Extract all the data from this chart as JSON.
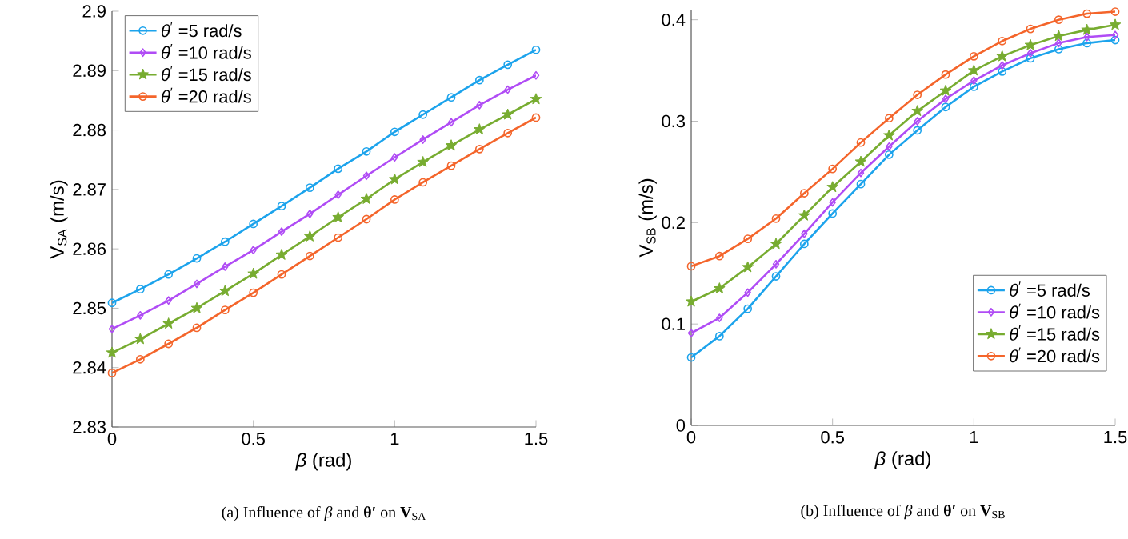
{
  "chart_data": [
    {
      "type": "line",
      "title": "(a) Influence of *β* and **θ′** on **V**$_{SA}$",
      "xlabel": "*β* (rad)",
      "ylabel": "V$_{SA}$ (m/s)",
      "x": [
        0,
        0.1,
        0.2,
        0.3,
        0.4,
        0.5,
        0.6,
        0.7,
        0.8,
        0.9,
        1.0,
        1.1,
        1.2,
        1.3,
        1.4,
        1.5
      ],
      "xlim": [
        0,
        1.5
      ],
      "xticks": [
        0,
        0.5,
        1,
        1.5
      ],
      "ylim": [
        2.83,
        2.9
      ],
      "yticks": [
        2.83,
        2.84,
        2.85,
        2.86,
        2.87,
        2.88,
        2.89,
        2.9
      ],
      "legend": "top left",
      "line_style": "solid",
      "series": [
        {
          "name": "*θ*$^{′}$ =5 rad/s",
          "color": "#1ca3ec",
          "marker": "circle",
          "values": [
            2.8509,
            2.8532,
            2.8557,
            2.8584,
            2.8612,
            2.8642,
            2.8672,
            2.8703,
            2.8735,
            2.8764,
            2.8797,
            2.8826,
            2.8855,
            2.8884,
            2.891,
            2.8935
          ]
        },
        {
          "name": "*θ*$^{′}$ =10 rad/s",
          "color": "#b04cf5",
          "marker": "diamond",
          "values": [
            2.8465,
            2.8488,
            2.8513,
            2.8541,
            2.857,
            2.8598,
            2.8629,
            2.8659,
            2.8691,
            2.8723,
            2.8754,
            2.8784,
            2.8813,
            2.8842,
            2.8868,
            2.8892
          ]
        },
        {
          "name": "*θ*$^{′}$ =15 rad/s",
          "color": "#77ac30",
          "marker": "star",
          "values": [
            2.8425,
            2.8448,
            2.8474,
            2.85,
            2.8529,
            2.8558,
            2.859,
            2.8621,
            2.8653,
            2.8684,
            2.8717,
            2.8746,
            2.8774,
            2.8801,
            2.8826,
            2.8852
          ]
        },
        {
          "name": "*θ*$^{′}$ =20 rad/s",
          "color": "#f4652b",
          "marker": "circle",
          "values": [
            2.8391,
            2.8414,
            2.844,
            2.8467,
            2.8497,
            2.8526,
            2.8557,
            2.8588,
            2.8619,
            2.865,
            2.8683,
            2.8712,
            2.874,
            2.8768,
            2.8795,
            2.8821
          ]
        }
      ]
    },
    {
      "type": "line",
      "title": "(b) Influence of *β* and **θ′** on **V**$_{SB}$",
      "xlabel": "*β* (rad)",
      "ylabel": "V$_{SB}$ (m/s)",
      "x": [
        0,
        0.1,
        0.2,
        0.3,
        0.4,
        0.5,
        0.6,
        0.7,
        0.8,
        0.9,
        1.0,
        1.1,
        1.2,
        1.3,
        1.4,
        1.5
      ],
      "xlim": [
        0,
        1.5
      ],
      "xticks": [
        0,
        0.5,
        1,
        1.5
      ],
      "ylim": [
        0,
        0.41
      ],
      "yticks": [
        0,
        0.1,
        0.2,
        0.3,
        0.4
      ],
      "legend": "bottom right",
      "line_style": "solid",
      "series": [
        {
          "name": "*θ*$^{′}$ =5 rad/s",
          "color": "#1ca3ec",
          "marker": "circle",
          "values": [
            0.067,
            0.088,
            0.115,
            0.147,
            0.179,
            0.209,
            0.238,
            0.267,
            0.291,
            0.314,
            0.334,
            0.349,
            0.362,
            0.371,
            0.377,
            0.38
          ]
        },
        {
          "name": "*θ*$^{′}$ =10 rad/s",
          "color": "#b04cf5",
          "marker": "diamond",
          "values": [
            0.091,
            0.106,
            0.131,
            0.159,
            0.189,
            0.22,
            0.249,
            0.275,
            0.3,
            0.322,
            0.34,
            0.355,
            0.367,
            0.377,
            0.383,
            0.385
          ]
        },
        {
          "name": "*θ*$^{′}$ =15 rad/s",
          "color": "#77ac30",
          "marker": "star",
          "values": [
            0.122,
            0.135,
            0.156,
            0.179,
            0.207,
            0.235,
            0.26,
            0.286,
            0.31,
            0.33,
            0.35,
            0.364,
            0.375,
            0.384,
            0.39,
            0.395
          ]
        },
        {
          "name": "*θ*$^{′}$ =20 rad/s",
          "color": "#f4652b",
          "marker": "circle",
          "values": [
            0.157,
            0.167,
            0.184,
            0.204,
            0.229,
            0.253,
            0.279,
            0.303,
            0.326,
            0.346,
            0.364,
            0.379,
            0.391,
            0.4,
            0.406,
            0.408
          ]
        }
      ]
    }
  ]
}
